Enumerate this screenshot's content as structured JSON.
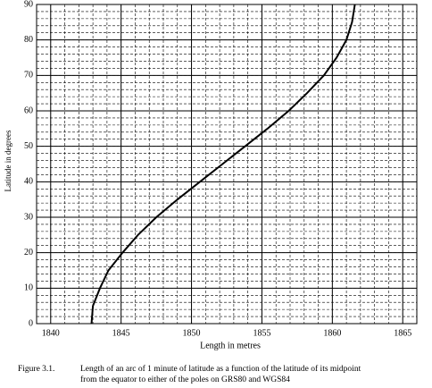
{
  "chart_data": {
    "type": "line",
    "x_label": "Length in metres",
    "y_label": "Latitude in degrees",
    "caption_number": "Figure 3.1.",
    "caption_lines": [
      "Length of an arc of 1 minute of latitude as a function of the latitude of its midpoint",
      "from the equator to either of the poles on GRS80 and WGS84"
    ],
    "x": [
      1842.9,
      1843.0,
      1843.5,
      1844.1,
      1845.1,
      1846.2,
      1847.5,
      1849.0,
      1850.6,
      1852.2,
      1853.8,
      1855.4,
      1856.9,
      1858.2,
      1859.4,
      1860.3,
      1861.0,
      1861.4,
      1861.6
    ],
    "values": [
      0,
      5,
      10,
      15,
      20,
      25,
      30,
      35,
      40,
      45,
      50,
      55,
      60,
      65,
      70,
      75,
      80,
      85,
      90
    ],
    "color": "#000000",
    "xlim": [
      1839,
      1866
    ],
    "xticks": [
      1840,
      1845,
      1850,
      1855,
      1860,
      1865
    ],
    "ylim": [
      0,
      90
    ],
    "yticks": [
      0,
      10,
      20,
      30,
      40,
      50,
      60,
      70,
      80,
      90
    ],
    "grid": true,
    "minor_divisions": 5
  }
}
